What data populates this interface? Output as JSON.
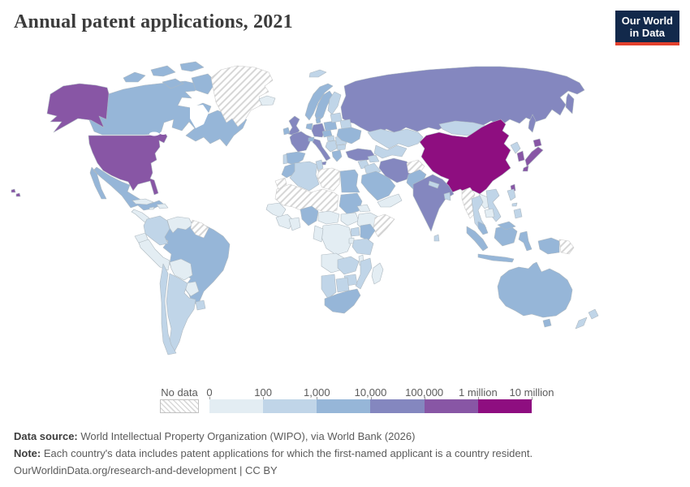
{
  "header": {
    "title": "Annual patent applications, 2021"
  },
  "logo": {
    "line1": "Our World",
    "line2": "in Data",
    "bg": "#12294b",
    "accent": "#e3402d"
  },
  "legend": {
    "no_data_label": "No data",
    "tick_labels": [
      "0",
      "100",
      "1,000",
      "10,000",
      "100,000",
      "1 million",
      "10 million"
    ]
  },
  "chart_data": {
    "type": "choropleth-map",
    "title": "Annual patent applications, 2021",
    "unit": "patent applications per year",
    "scale": "log bins",
    "bins": [
      "0–100",
      "100–1,000",
      "1,000–10,000",
      "10,000–100,000",
      "100,000–1 million",
      "1 million–10 million"
    ],
    "palette": {
      "band0": "#e3edf3",
      "band1": "#c0d5e8",
      "band2": "#96b6d8",
      "band3": "#8487bf",
      "band4": "#8856a5",
      "band5": "#8e0e80",
      "nodata_stroke": "#cccccc",
      "border": "#aeb9c1"
    },
    "countries": {
      "united-states": "band4",
      "canada": "band2",
      "greenland": "nodata",
      "iceland": "band0",
      "mexico": "band2",
      "central-america": "band0",
      "cuba": "band0",
      "hispaniola": "band0",
      "jamaica": "band0",
      "colombia": "band1",
      "venezuela": "band0",
      "guyanas": "nodata",
      "ecuador": "band0",
      "peru": "band0",
      "brazil": "band2",
      "bolivia": "band0",
      "paraguay": "band0",
      "uruguay": "band1",
      "argentina": "band1",
      "chile": "band1",
      "united-kingdom": "band3",
      "ireland": "band2",
      "norway": "band2",
      "sweden": "band2",
      "finland": "band1",
      "denmark": "band2",
      "germany": "band3",
      "benelux": "band2",
      "france": "band3",
      "spain": "band2",
      "portugal": "band1",
      "italy": "band3",
      "switzerland": "band2",
      "austria-czechia": "band2",
      "poland": "band2",
      "hungary": "band1",
      "balkans": "band1",
      "romania": "band1",
      "bulgaria": "band1",
      "greece": "band2",
      "baltics": "band1",
      "belarus": "band1",
      "ukraine": "band2",
      "russia": "band3",
      "svalbard": "band1",
      "kazakhstan": "band1",
      "central-asia": "band1",
      "caucasus": "band1",
      "turkey": "band3",
      "levant": "band1",
      "iraq": "band1",
      "saudi-arabia": "band2",
      "yemen-oman": "band0",
      "iran": "band3",
      "afghanistan": "nodata",
      "pakistan": "band2",
      "india": "band3",
      "nepal": "band1",
      "bangladesh": "band1",
      "sri-lanka": "band1",
      "mongolia": "band1",
      "china": "band5",
      "taiwan": "band4",
      "north-korea": "band1",
      "south-korea": "band4",
      "japan": "band4",
      "myanmar": "nodata",
      "thailand": "band1",
      "laos": "band0",
      "vietnam": "band1",
      "cambodia": "band0",
      "malaysia": "band2",
      "indonesia": "band2",
      "philippines": "band1",
      "papua-new-guinea": "nodata",
      "australia": "band2",
      "new-zealand": "band1",
      "morocco": "band2",
      "western-sahara": "nodata",
      "algeria": "band1",
      "tunisia": "band1",
      "libya": "nodata",
      "egypt": "band2",
      "sahel": "nodata",
      "senegal": "band0",
      "guinea-region": "band0",
      "ivory-ghana": "band0",
      "nigeria": "band2",
      "cameroon-car": "band0",
      "sudan": "band2",
      "south-sudan": "band0",
      "eritrea": "band0",
      "ethiopia": "band0",
      "somalia": "nodata",
      "drc": "band0",
      "congo-gabon": "band0",
      "uganda": "band1",
      "kenya": "band2",
      "tanzania": "band1",
      "rwanda-burundi": "band0",
      "angola": "band0",
      "zambia": "band1",
      "malawi": "band0",
      "mozambique": "band1",
      "zimbabwe": "band1",
      "namibia": "band1",
      "botswana": "band1",
      "south-africa": "band2",
      "madagascar": "band0"
    }
  },
  "footer": {
    "source_label": "Data source:",
    "source_text": " World Intellectual Property Organization (WIPO), via World Bank (2026)",
    "note_label": "Note:",
    "note_text": " Each country's data includes patent applications for which the first-named applicant is a country resident.",
    "url": "OurWorldinData.org/research-and-development",
    "separator": " | ",
    "license": "CC BY"
  }
}
